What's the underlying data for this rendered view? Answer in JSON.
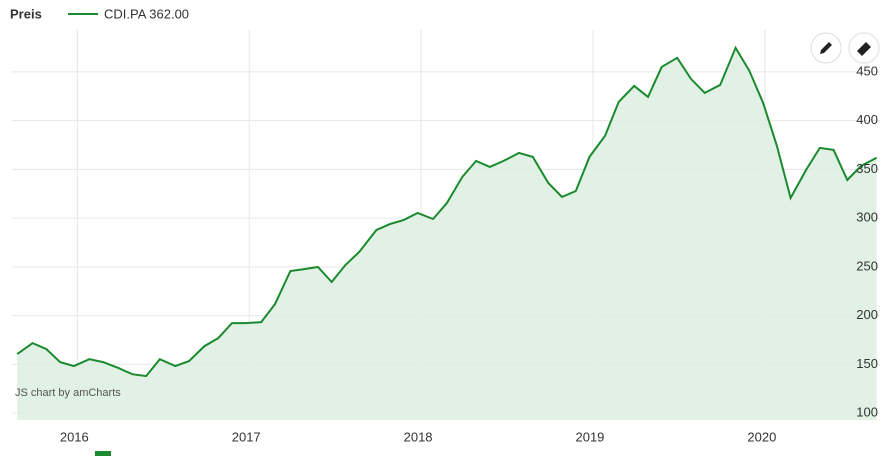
{
  "chart_data": {
    "type": "area",
    "title": "Preis",
    "annotation": "JS chart by amCharts",
    "x": [
      2015.65,
      2015.74,
      2015.82,
      2015.9,
      2015.98,
      2016.07,
      2016.15,
      2016.24,
      2016.32,
      2016.4,
      2016.48,
      2016.57,
      2016.65,
      2016.74,
      2016.82,
      2016.9,
      2016.98,
      2017.07,
      2017.15,
      2017.24,
      2017.32,
      2017.4,
      2017.48,
      2017.56,
      2017.64,
      2017.74,
      2017.82,
      2017.9,
      2017.98,
      2018.07,
      2018.15,
      2018.24,
      2018.32,
      2018.4,
      2018.48,
      2018.57,
      2018.65,
      2018.74,
      2018.82,
      2018.9,
      2018.98,
      2019.07,
      2019.15,
      2019.24,
      2019.32,
      2019.4,
      2019.49,
      2019.57,
      2019.65,
      2019.74,
      2019.83,
      2019.91,
      2019.99,
      2020.07,
      2020.15,
      2020.24,
      2020.32,
      2020.4,
      2020.48,
      2020.56,
      2020.65
    ],
    "series": [
      {
        "name": "CDI.PA 362.00",
        "color": "#1a8a2e",
        "fill": "#dcefe0",
        "values": [
          160.6,
          171.9,
          165.7,
          152.4,
          148.3,
          155.4,
          152.4,
          146.2,
          140.0,
          138.0,
          155.4,
          148.3,
          153.4,
          168.8,
          177.0,
          192.4,
          192.4,
          193.4,
          211.9,
          245.8,
          247.8,
          249.9,
          234.5,
          252.0,
          265.3,
          287.9,
          294.0,
          298.2,
          305.3,
          299.2,
          315.6,
          342.3,
          358.7,
          352.6,
          358.7,
          366.9,
          362.8,
          336.1,
          321.8,
          327.9,
          362.8,
          384.4,
          419.3,
          435.7,
          424.4,
          455.2,
          464.5,
          442.9,
          428.5,
          436.7,
          474.7,
          451.1,
          418.3,
          374.1,
          320.7,
          349.5,
          372.1,
          370.0,
          339.2,
          353.6,
          362.0
        ]
      }
    ],
    "xlim": [
      2015.62,
      2020.67
    ],
    "xticks": [
      2016,
      2017,
      2018,
      2019,
      2020
    ],
    "ylim": [
      93,
      493
    ],
    "yticks": [
      100,
      150,
      200,
      250,
      300,
      350,
      400,
      450
    ],
    "grid": true
  }
}
